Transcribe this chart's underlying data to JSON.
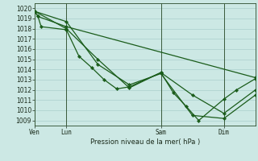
{
  "title": "Pression niveau de la mer( hPa )",
  "bg_color": "#cce8e4",
  "grid_color": "#aacfcc",
  "line_color": "#1a5c1a",
  "marker_color": "#1a5c1a",
  "ylim": [
    1008.5,
    1020.5
  ],
  "yticks": [
    1009,
    1010,
    1011,
    1012,
    1013,
    1014,
    1015,
    1016,
    1017,
    1018,
    1019,
    1020
  ],
  "xtick_labels": [
    "Ven",
    "Lun",
    "Sam",
    "Dim"
  ],
  "xtick_positions": [
    0,
    30,
    120,
    180
  ],
  "vline_positions": [
    0,
    30,
    120,
    180
  ],
  "total_steps": 210,
  "series": [
    [
      0,
      1019.7,
      3,
      1019.2,
      6,
      1018.2,
      30,
      1017.9,
      42,
      1015.3,
      54,
      1014.2,
      66,
      1013.0,
      78,
      1012.1,
      90,
      1012.3,
      120,
      1013.7,
      132,
      1011.7,
      144,
      1010.4,
      156,
      1009.0,
      180,
      1011.1,
      192,
      1012.0,
      210,
      1013.1
    ],
    [
      0,
      1019.7,
      30,
      1018.0,
      60,
      1015.0,
      90,
      1012.2,
      120,
      1013.7,
      150,
      1011.5,
      180,
      1009.7,
      210,
      1012.0
    ],
    [
      0,
      1019.7,
      30,
      1018.7,
      60,
      1014.5,
      90,
      1012.5,
      120,
      1013.6,
      150,
      1009.5,
      180,
      1009.2,
      210,
      1011.5
    ],
    [
      0,
      1019.7,
      3,
      1019.2,
      30,
      1018.2,
      210,
      1013.2
    ]
  ]
}
